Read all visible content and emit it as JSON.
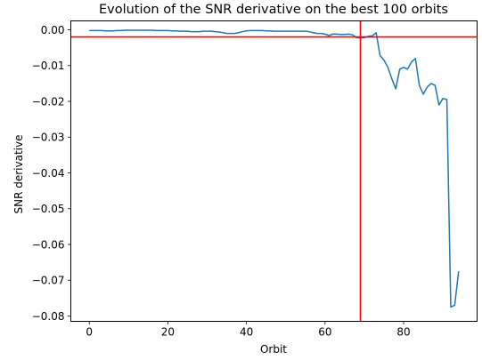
{
  "chart_data": {
    "type": "line",
    "title": "Evolution of the SNR derivative on the best 100 orbits",
    "xlabel": "Orbit",
    "ylabel": "SNR derivative",
    "xlim": [
      -4.7,
      98.7
    ],
    "ylim": [
      -0.0815,
      0.0025
    ],
    "xticks": [
      0,
      20,
      40,
      60,
      80
    ],
    "yticks": [
      0.0,
      -0.01,
      -0.02,
      -0.03,
      -0.04,
      -0.05,
      -0.06,
      -0.07,
      -0.08
    ],
    "ytick_labels": [
      "0.00",
      "−0.01",
      "−0.02",
      "−0.03",
      "−0.04",
      "−0.05",
      "−0.06",
      "−0.07",
      "−0.08"
    ],
    "grid": false,
    "series": [
      {
        "color": "#1f77b4",
        "x": [
          0,
          1,
          2,
          3,
          4,
          5,
          6,
          7,
          8,
          9,
          10,
          11,
          12,
          13,
          14,
          15,
          16,
          17,
          18,
          19,
          20,
          21,
          22,
          23,
          24,
          25,
          26,
          27,
          28,
          29,
          30,
          31,
          32,
          33,
          34,
          35,
          36,
          37,
          38,
          39,
          40,
          41,
          42,
          43,
          44,
          45,
          46,
          47,
          48,
          49,
          50,
          51,
          52,
          53,
          54,
          55,
          56,
          57,
          58,
          59,
          60,
          61,
          62,
          63,
          64,
          65,
          66,
          67,
          68,
          69,
          70,
          71,
          72,
          73,
          74,
          75,
          76,
          77,
          78,
          79,
          80,
          81,
          82,
          83,
          84,
          85,
          86,
          87,
          88,
          89,
          90,
          91,
          92,
          93,
          94
        ],
        "y": [
          -0.0002,
          -0.0002,
          -0.0002,
          -0.0002,
          -0.0003,
          -0.0003,
          -0.0003,
          -0.0002,
          -0.0002,
          -0.0001,
          -0.0001,
          -0.0001,
          -0.0001,
          -0.0001,
          -0.0001,
          -0.0001,
          -0.0001,
          -0.0002,
          -0.0002,
          -0.0002,
          -0.0002,
          -0.0003,
          -0.0003,
          -0.0004,
          -0.0004,
          -0.0004,
          -0.0005,
          -0.0005,
          -0.0005,
          -0.0004,
          -0.0004,
          -0.0004,
          -0.0005,
          -0.0006,
          -0.0008,
          -0.001,
          -0.001,
          -0.001,
          -0.0008,
          -0.0005,
          -0.0003,
          -0.0002,
          -0.0002,
          -0.0002,
          -0.0002,
          -0.0003,
          -0.0003,
          -0.0004,
          -0.0004,
          -0.0004,
          -0.0004,
          -0.0004,
          -0.0004,
          -0.0004,
          -0.0004,
          -0.0004,
          -0.0005,
          -0.0008,
          -0.001,
          -0.001,
          -0.0012,
          -0.0016,
          -0.0012,
          -0.0012,
          -0.0013,
          -0.0013,
          -0.0012,
          -0.0014,
          -0.0022,
          -0.0023,
          -0.0022,
          -0.0018,
          -0.0017,
          -0.0008,
          -0.0072,
          -0.0085,
          -0.0105,
          -0.0137,
          -0.0165,
          -0.011,
          -0.0105,
          -0.011,
          -0.009,
          -0.008,
          -0.0155,
          -0.018,
          -0.016,
          -0.015,
          -0.0155,
          -0.021,
          -0.0192,
          -0.0195,
          -0.0775,
          -0.077,
          -0.0675
        ]
      }
    ],
    "reference_lines": {
      "color": "#ff0000",
      "horizontal_y": -0.002,
      "vertical_x": 69
    }
  }
}
